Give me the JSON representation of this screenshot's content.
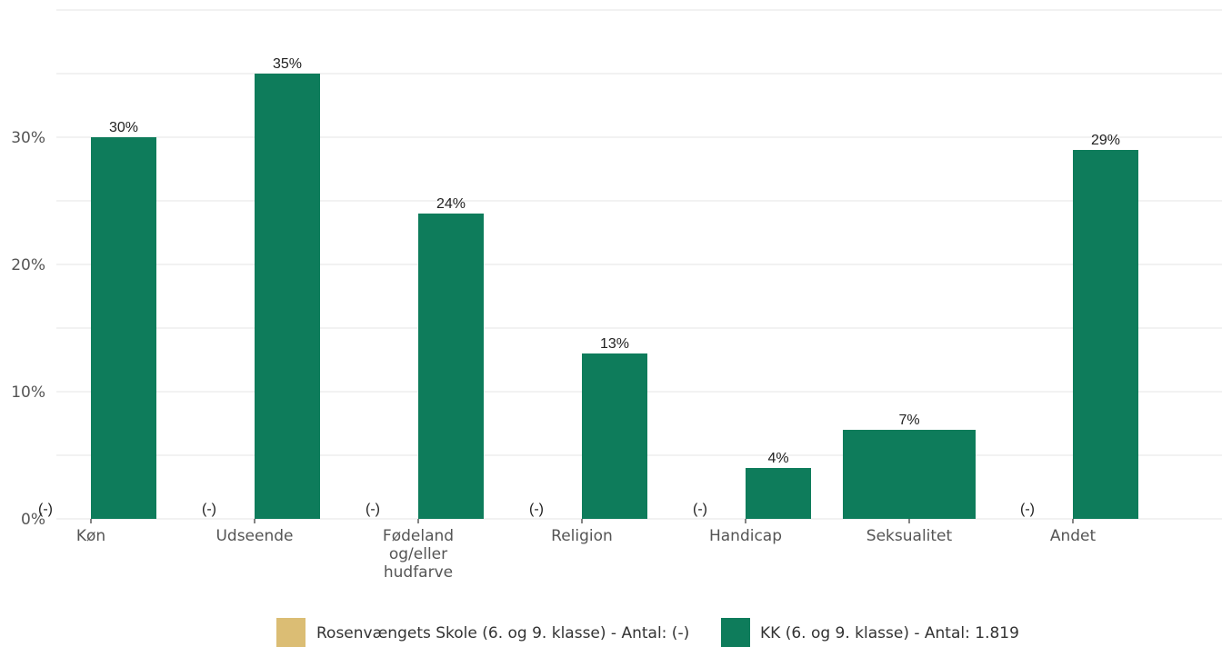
{
  "chart_data": {
    "type": "bar",
    "categories": [
      "Køn",
      "Udseende",
      "Fødeland og/eller hudfarve",
      "Religion",
      "Handicap",
      "Seksualitet",
      "Andet"
    ],
    "category_lines": [
      [
        "Køn"
      ],
      [
        "Udseende"
      ],
      [
        "Fødeland",
        "og/eller",
        "hudfarve"
      ],
      [
        "Religion"
      ],
      [
        "Handicap"
      ],
      [
        "Seksualitet"
      ],
      [
        "Andet"
      ]
    ],
    "series": [
      {
        "name": "Rosenvængets Skole (6. og 9. klasse) - Antal: (-)",
        "values": [
          null,
          null,
          null,
          null,
          null,
          null,
          null
        ],
        "labels": [
          "(-)",
          "(-)",
          "(-)",
          "(-)",
          "(-)",
          "",
          "(-)"
        ],
        "color": "#dbbd74"
      },
      {
        "name": "KK (6. og 9. klasse) - Antal: 1.819",
        "values": [
          30,
          35,
          24,
          13,
          4,
          7,
          29
        ],
        "labels": [
          "30%",
          "35%",
          "24%",
          "13%",
          "4%",
          "7%",
          "29%"
        ],
        "color": "#0e7c5b"
      }
    ],
    "yticks": [
      0,
      10,
      20,
      30
    ],
    "ytick_labels": [
      "0%",
      "10%",
      "20%",
      "30%"
    ],
    "ylim": [
      0,
      40
    ],
    "grid": true,
    "legend_position": "bottom"
  }
}
